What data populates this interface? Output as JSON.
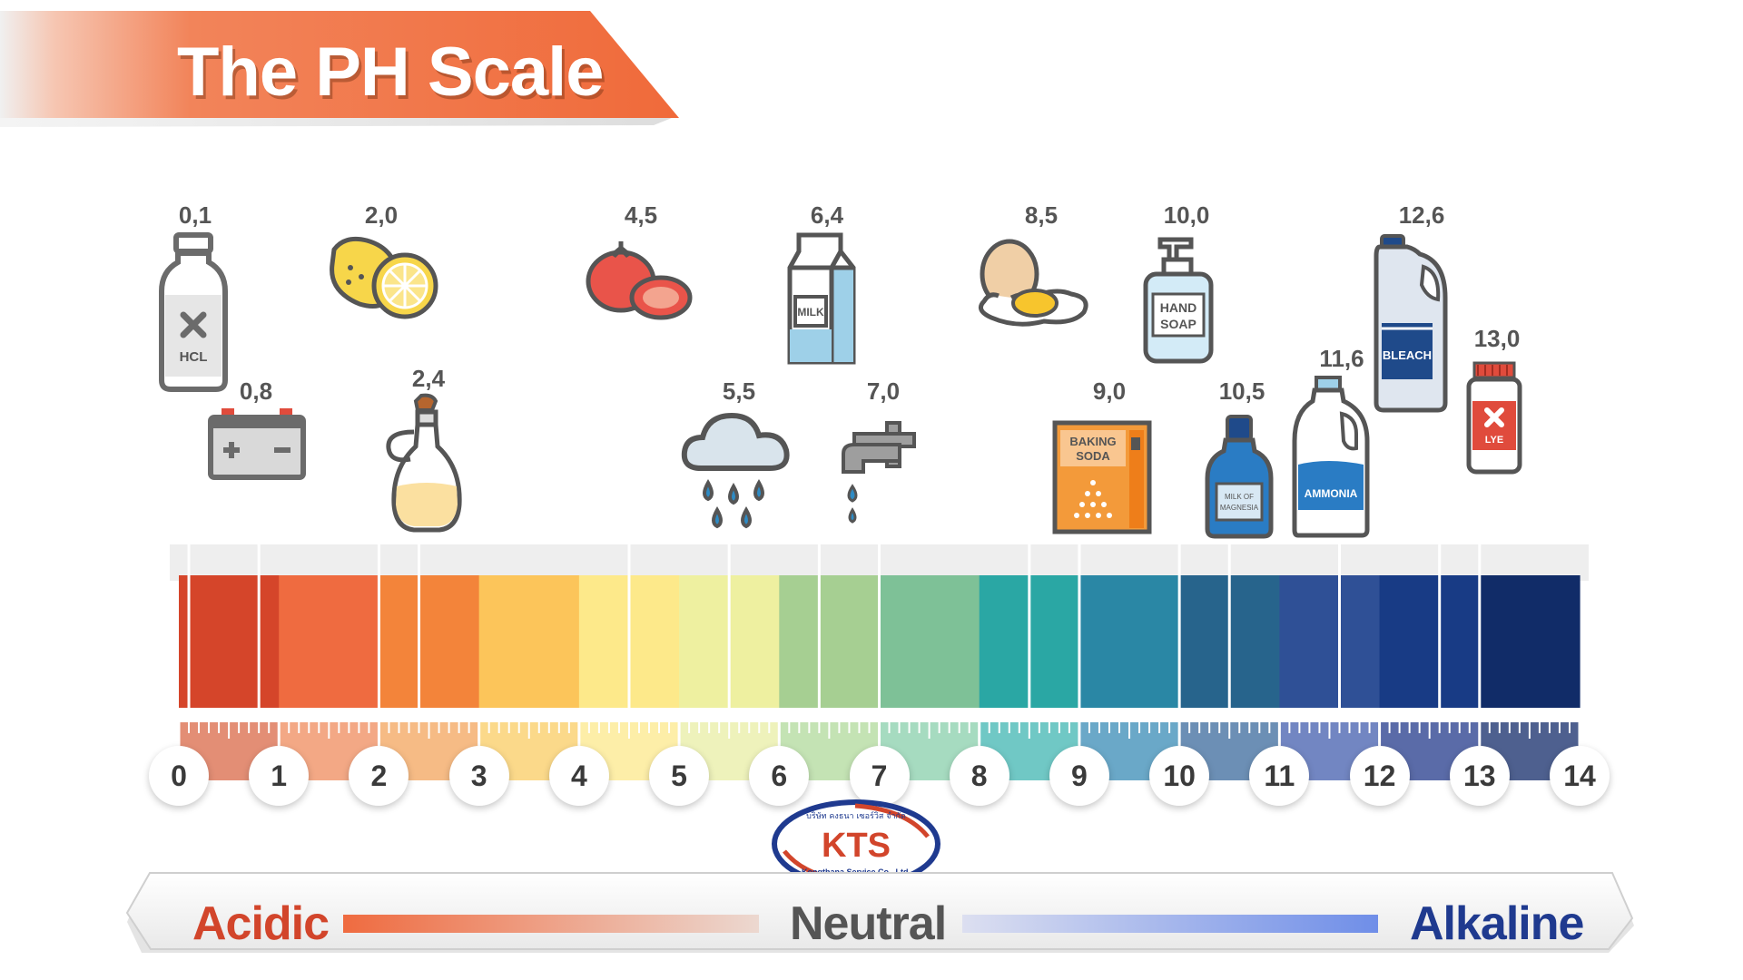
{
  "title": "The PH Scale",
  "scale": {
    "numbers": [
      "0",
      "1",
      "2",
      "3",
      "4",
      "5",
      "6",
      "7",
      "8",
      "9",
      "10",
      "11",
      "12",
      "13",
      "14"
    ],
    "colors": [
      "#d5452a",
      "#ef6b40",
      "#f3843a",
      "#fcc55a",
      "#fde98a",
      "#eef0a0",
      "#a6cf92",
      "#7ec197",
      "#2aa7a4",
      "#2a87a5",
      "#27648c",
      "#2f5096",
      "#183b85",
      "#112c68"
    ],
    "lower_colors": [
      "#e38e75",
      "#f3a885",
      "#f6bb85",
      "#fbd98a",
      "#fdeea8",
      "#eef2bb",
      "#c4e3b4",
      "#a6dbc0",
      "#70c8c5",
      "#6aa8c8",
      "#6c8fb5",
      "#7286c2",
      "#5a6ba8",
      "#4e608f"
    ]
  },
  "items": [
    {
      "id": "hcl",
      "value": "0,1",
      "icon_text": "HCL",
      "icon": "hcl-bottle-icon"
    },
    {
      "id": "battery",
      "value": "0,8",
      "icon": "battery-icon"
    },
    {
      "id": "lemon",
      "value": "2,0",
      "icon": "lemon-icon"
    },
    {
      "id": "vinegar",
      "value": "2,4",
      "icon": "vinegar-bottle-icon"
    },
    {
      "id": "tomato",
      "value": "4,5",
      "icon": "tomato-icon"
    },
    {
      "id": "rain",
      "value": "5,5",
      "icon": "rain-cloud-icon"
    },
    {
      "id": "milk",
      "value": "6,4",
      "icon_text": "MILK",
      "icon": "milk-carton-icon"
    },
    {
      "id": "tap",
      "value": "7,0",
      "icon": "water-tap-icon"
    },
    {
      "id": "egg",
      "value": "8,5",
      "icon": "egg-icon"
    },
    {
      "id": "baking",
      "value": "9,0",
      "icon_text1": "BAKING",
      "icon_text2": "SODA",
      "icon": "baking-soda-box-icon"
    },
    {
      "id": "soap",
      "value": "10,0",
      "icon_text1": "HAND",
      "icon_text2": "SOAP",
      "icon": "hand-soap-bottle-icon"
    },
    {
      "id": "magnesia",
      "value": "10,5",
      "icon_text1": "MILK OF",
      "icon_text2": "MAGNESIA",
      "icon": "milk-of-magnesia-bottle-icon"
    },
    {
      "id": "ammonia",
      "value": "11,6",
      "icon_text": "AMMONIA",
      "icon": "ammonia-jug-icon"
    },
    {
      "id": "bleach",
      "value": "12,6",
      "icon_text": "BLEACH",
      "icon": "bleach-jug-icon"
    },
    {
      "id": "lye",
      "value": "13,0",
      "icon_text": "LYE",
      "icon": "lye-jar-icon"
    }
  ],
  "logo": {
    "text": "KTS",
    "line_top": "บริษัท คงธนา เซอร์วิส จำกัด",
    "line_bottom": "Kongthana Service Co., Ltd."
  },
  "bottom_bar": {
    "left": "Acidic",
    "center": "Neutral",
    "right": "Alkaline"
  }
}
